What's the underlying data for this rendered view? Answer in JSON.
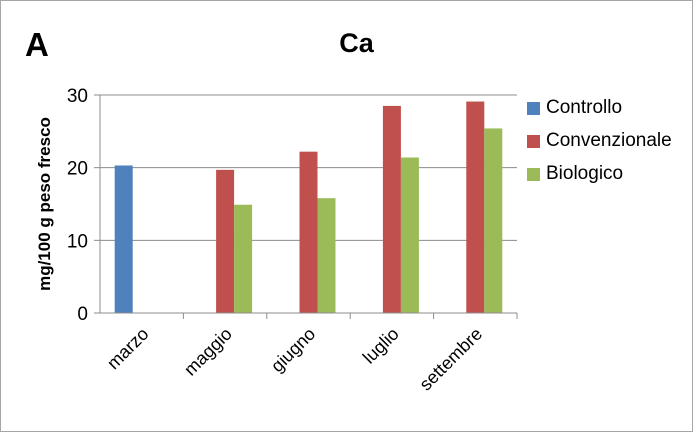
{
  "panel_letter": "A",
  "chart_data": {
    "type": "bar",
    "title": "Ca",
    "ylabel": "mg/100 g peso fresco",
    "xlabel": "",
    "categories": [
      "marzo",
      "maggio",
      "giugno",
      "luglio",
      "settembre"
    ],
    "ylim": [
      0,
      30
    ],
    "yticks": [
      0,
      10,
      20,
      30
    ],
    "grid": true,
    "legend_position": "right",
    "series": [
      {
        "name": "Controllo",
        "color": "#4f81bd",
        "values": [
          20.3,
          null,
          null,
          null,
          null
        ]
      },
      {
        "name": "Convenzionale",
        "color": "#c0504d",
        "values": [
          null,
          19.7,
          22.2,
          28.5,
          29.1
        ]
      },
      {
        "name": "Biologico",
        "color": "#9bbb59",
        "values": [
          null,
          14.9,
          15.8,
          21.4,
          25.4
        ]
      }
    ]
  }
}
